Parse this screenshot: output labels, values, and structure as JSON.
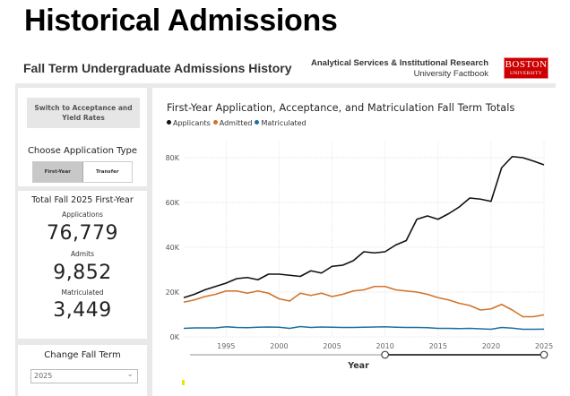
{
  "slide_title": "Historical Admissions",
  "report": {
    "title": "Fall Term Undergraduate Admissions History",
    "org_line1": "Analytical Services & Institutional Research",
    "org_line2": "University Factbook",
    "logo_line1": "BOSTON",
    "logo_line2": "UNIVERSITY",
    "brand_color": "#cc0000"
  },
  "sidebar": {
    "switch_button": "Switch to Acceptance and Yield Rates",
    "app_type_label": "Choose Application Type",
    "app_type_options": [
      "First-Year",
      "Transfer"
    ],
    "app_type_selected": "First-Year",
    "kpi_heading": "Total Fall 2025 First-Year",
    "kpis": [
      {
        "label": "Applications",
        "value": "76,779"
      },
      {
        "label": "Admits",
        "value": "9,852"
      },
      {
        "label": "Matriculated",
        "value": "3,449"
      }
    ],
    "term_label": "Change Fall Term",
    "term_value": "2025"
  },
  "chart_data": {
    "type": "line",
    "title": "First-Year Application, Acceptance, and Matriculation Fall Term Totals",
    "xlabel": "Year",
    "ylabel": "",
    "x": [
      1991,
      1992,
      1993,
      1994,
      1995,
      1996,
      1997,
      1998,
      1999,
      2000,
      2001,
      2002,
      2003,
      2004,
      2005,
      2006,
      2007,
      2008,
      2009,
      2010,
      2011,
      2012,
      2013,
      2014,
      2015,
      2016,
      2017,
      2018,
      2019,
      2020,
      2021,
      2022,
      2023,
      2024,
      2025
    ],
    "xlim": [
      1991,
      2025
    ],
    "xticks": [
      "1995",
      "2000",
      "2005",
      "2010",
      "2015",
      "2020",
      "2025"
    ],
    "ylim": [
      0,
      85000
    ],
    "yticks": [
      "0K",
      "20K",
      "40K",
      "60K",
      "80K"
    ],
    "grid": true,
    "legend_position": "top-left",
    "series": [
      {
        "name": "Applicants",
        "color": "#111111",
        "values": [
          17500,
          19000,
          21000,
          22500,
          24000,
          26000,
          26500,
          25500,
          28000,
          28000,
          27500,
          27000,
          29500,
          28500,
          31500,
          32000,
          34000,
          38000,
          37500,
          38000,
          41000,
          43000,
          52500,
          54000,
          52500,
          55000,
          58000,
          62000,
          61500,
          60500,
          75500,
          80500,
          80000,
          78500,
          76779
        ]
      },
      {
        "name": "Admitted",
        "color": "#d0742c",
        "values": [
          15500,
          16500,
          18000,
          19000,
          20500,
          20500,
          19500,
          20500,
          19500,
          17000,
          16000,
          19500,
          18500,
          19500,
          18000,
          19000,
          20500,
          21000,
          22500,
          22500,
          21000,
          20500,
          20000,
          19000,
          17500,
          16500,
          15000,
          14000,
          12000,
          12500,
          14500,
          12000,
          9000,
          9000,
          9852
        ]
      },
      {
        "name": "Matriculated",
        "color": "#1f6fa0",
        "values": [
          3800,
          4000,
          4000,
          4000,
          4500,
          4200,
          4100,
          4300,
          4400,
          4300,
          3800,
          4600,
          4200,
          4400,
          4300,
          4200,
          4200,
          4300,
          4400,
          4500,
          4300,
          4200,
          4200,
          4100,
          3800,
          3800,
          3700,
          3800,
          3600,
          3400,
          4200,
          3900,
          3400,
          3400,
          3449
        ]
      }
    ],
    "slider": {
      "range": [
        2010,
        2025
      ]
    }
  }
}
